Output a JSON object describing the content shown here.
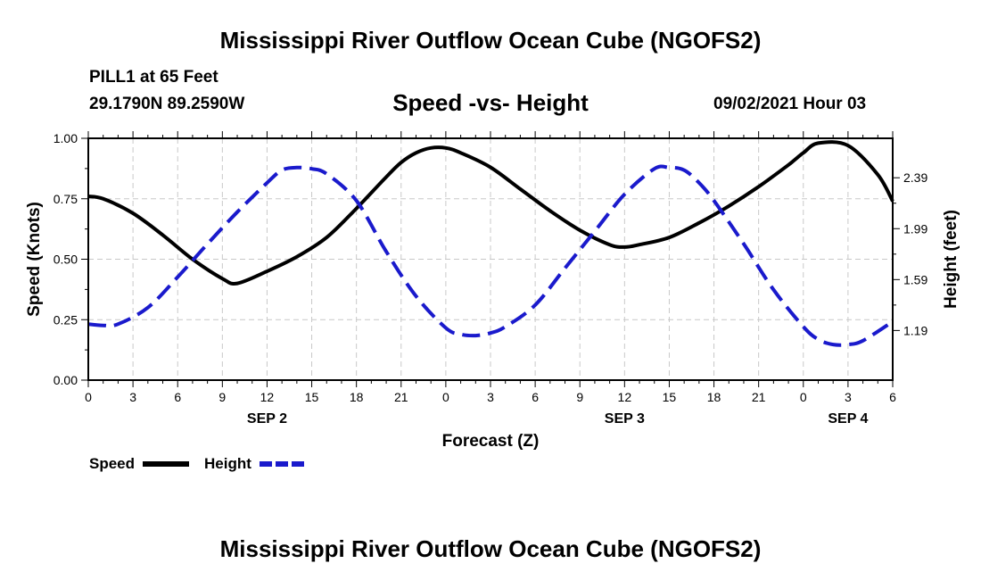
{
  "header": {
    "title": "Mississippi River Outflow Ocean Cube (NGOFS2)",
    "station": "PILL1 at 65 Feet",
    "coordinates": "29.1790N  89.2590W",
    "subtitle": "Speed -vs- Height",
    "timestamp": "09/02/2021 Hour 03"
  },
  "footer": {
    "title": "Mississippi River Outflow Ocean Cube (NGOFS2)"
  },
  "chart_data": {
    "type": "line",
    "title": "Speed -vs- Height",
    "xlabel": "Forecast (Z)",
    "ylabel": "Speed (Knots)",
    "y2label": "Height (feet)",
    "xlim": [
      0,
      54
    ],
    "ylim": [
      0,
      1
    ],
    "y2lim": [
      0.8,
      2.7
    ],
    "x_tick_values": [
      0,
      3,
      6,
      9,
      12,
      15,
      18,
      21,
      24,
      27,
      30,
      33,
      36,
      39,
      42,
      45,
      48,
      51,
      54
    ],
    "x_tick_labels": [
      "0",
      "3",
      "6",
      "9",
      "12",
      "15",
      "18",
      "21",
      "0",
      "3",
      "6",
      "9",
      "12",
      "15",
      "18",
      "21",
      "0",
      "3",
      "6"
    ],
    "x_day_labels": [
      {
        "x": 12,
        "label": "SEP 2"
      },
      {
        "x": 36,
        "label": "SEP 3"
      },
      {
        "x": 51,
        "label": "SEP 4"
      }
    ],
    "y_ticks": [
      0.0,
      0.25,
      0.5,
      0.75,
      1.0
    ],
    "y_tick_labels": [
      "0.00",
      "0.25",
      "0.50",
      "0.75",
      "1.00"
    ],
    "y2_ticks": [
      1.19,
      1.59,
      1.99,
      2.39
    ],
    "y2_tick_labels": [
      "1.19",
      "1.59",
      "1.99",
      "2.39"
    ],
    "grid": true,
    "legend": {
      "position": "bottom-left",
      "items": [
        {
          "label": "Speed",
          "color": "#000000",
          "style": "solid"
        },
        {
          "label": "Height",
          "color": "#1a1acc",
          "style": "dashed"
        }
      ]
    },
    "series": [
      {
        "name": "Speed",
        "axis": "left",
        "color": "#000000",
        "style": "solid",
        "x": [
          0,
          1,
          3,
          5,
          7,
          9,
          10,
          12,
          14,
          16,
          18,
          20,
          21,
          22,
          23,
          24,
          25,
          27,
          29,
          31,
          33,
          35,
          36,
          37,
          39,
          41,
          43,
          45,
          47,
          48,
          49,
          51,
          53,
          54
        ],
        "y": [
          0.76,
          0.75,
          0.69,
          0.6,
          0.5,
          0.42,
          0.4,
          0.45,
          0.51,
          0.59,
          0.71,
          0.84,
          0.9,
          0.94,
          0.96,
          0.96,
          0.94,
          0.88,
          0.79,
          0.7,
          0.62,
          0.56,
          0.55,
          0.56,
          0.59,
          0.65,
          0.72,
          0.8,
          0.89,
          0.94,
          0.98,
          0.97,
          0.85,
          0.74
        ]
      },
      {
        "name": "Height",
        "axis": "right",
        "color": "#1a1acc",
        "style": "dashed",
        "x": [
          0,
          1,
          2,
          4,
          6,
          8,
          10,
          12,
          13,
          14,
          15,
          16,
          18,
          20,
          22,
          24,
          25,
          26,
          27,
          28,
          30,
          32,
          34,
          36,
          38,
          39,
          40,
          41,
          42,
          44,
          46,
          48,
          49,
          50,
          51,
          52,
          54
        ],
        "y": [
          1.24,
          1.23,
          1.24,
          1.37,
          1.61,
          1.87,
          2.12,
          2.35,
          2.45,
          2.47,
          2.46,
          2.42,
          2.21,
          1.81,
          1.46,
          1.21,
          1.16,
          1.15,
          1.17,
          1.22,
          1.39,
          1.68,
          1.97,
          2.26,
          2.46,
          2.47,
          2.45,
          2.35,
          2.21,
          1.87,
          1.51,
          1.22,
          1.12,
          1.08,
          1.08,
          1.11,
          1.26
        ]
      }
    ]
  }
}
